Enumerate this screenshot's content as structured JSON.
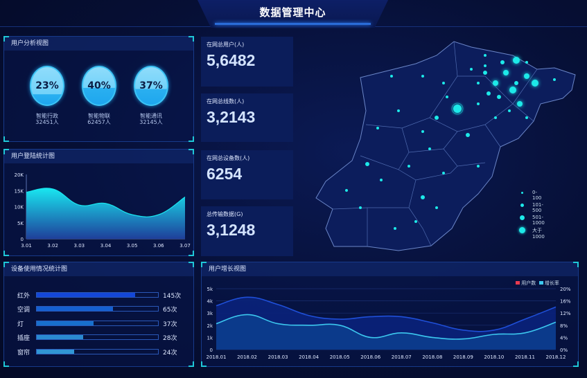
{
  "header": {
    "title": "数据管理中心"
  },
  "user_analysis": {
    "title": "用户分析视图",
    "items": [
      {
        "percent": "23%",
        "fill": 0.23,
        "name": "智能行政",
        "count": "32451人"
      },
      {
        "percent": "40%",
        "fill": 0.4,
        "name": "智能物联",
        "count": "62457人"
      },
      {
        "percent": "37%",
        "fill": 0.37,
        "name": "智能通讯",
        "count": "32145人"
      }
    ]
  },
  "stats": [
    {
      "label": "在网总用户(人)",
      "value": "5,6482"
    },
    {
      "label": "在网总线数(人)",
      "value": "3,2143"
    },
    {
      "label": "在网总设备数(人)",
      "value": "6254"
    },
    {
      "label": "总传输数据(G)",
      "value": "3,1248"
    }
  ],
  "map": {
    "legend": [
      {
        "label": "0-100"
      },
      {
        "label": "101-500"
      },
      {
        "label": "501-1000"
      },
      {
        "label": "大于1000"
      }
    ],
    "dot_color": "#1de9e9"
  },
  "device_usage": {
    "title": "设备使用情况统计图",
    "items": [
      {
        "name": "红外",
        "count": "145次",
        "fill_pct": 81,
        "color": "#1447d8"
      },
      {
        "name": "空调",
        "count": "65次",
        "fill_pct": 63,
        "color": "#1560d0"
      },
      {
        "name": "灯",
        "count": "37次",
        "fill_pct": 47,
        "color": "#1870cc"
      },
      {
        "name": "插座",
        "count": "28次",
        "fill_pct": 38,
        "color": "#2a8ad0"
      },
      {
        "name": "窗帘",
        "count": "24次",
        "fill_pct": 31,
        "color": "#3196d4"
      }
    ]
  },
  "chart_data": [
    {
      "type": "area",
      "title": "用户登陆统计图",
      "categories": [
        "3.01",
        "3.02",
        "3.03",
        "3.04",
        "3.05",
        "3.06",
        "3.07"
      ],
      "values": [
        14500,
        15500,
        10500,
        11000,
        7500,
        7500,
        13000
      ],
      "ylim": [
        0,
        20000
      ],
      "yticks": [
        "0",
        "5K",
        "10K",
        "15K",
        "20K"
      ],
      "color_top": "#19e6f0",
      "color_bottom": "#1e3f9a"
    },
    {
      "type": "area",
      "title": "用户增长视图",
      "categories": [
        "2018.01",
        "2018.02",
        "2018.03",
        "2018.04",
        "2018.05",
        "2018.06",
        "2018.07",
        "2018.08",
        "2018.09",
        "2018.10",
        "2018.11",
        "2018.12"
      ],
      "series": [
        {
          "name": "用户数",
          "axis": "left",
          "values": [
            3600,
            4300,
            3700,
            2800,
            2500,
            2700,
            2700,
            2200,
            1600,
            1600,
            2500,
            3500
          ],
          "legend_color": "#e83a50",
          "line_color": "#1f4fd8"
        },
        {
          "name": "增长率",
          "axis": "right",
          "values": [
            8.5,
            11.5,
            8.5,
            8,
            8,
            4,
            5.5,
            4,
            3.5,
            5,
            5.5,
            9
          ],
          "legend_color": "#3cc8ef",
          "line_color": "#3cc8ef"
        }
      ],
      "ylim_left": [
        0,
        5000
      ],
      "yticks_left": [
        "0",
        "1k",
        "2k",
        "3k",
        "4k",
        "5k"
      ],
      "ylim_right": [
        0,
        20
      ],
      "yticks_right": [
        "0%",
        "4%",
        "8%",
        "12%",
        "16%",
        "20%"
      ],
      "legend": "top-right"
    }
  ]
}
